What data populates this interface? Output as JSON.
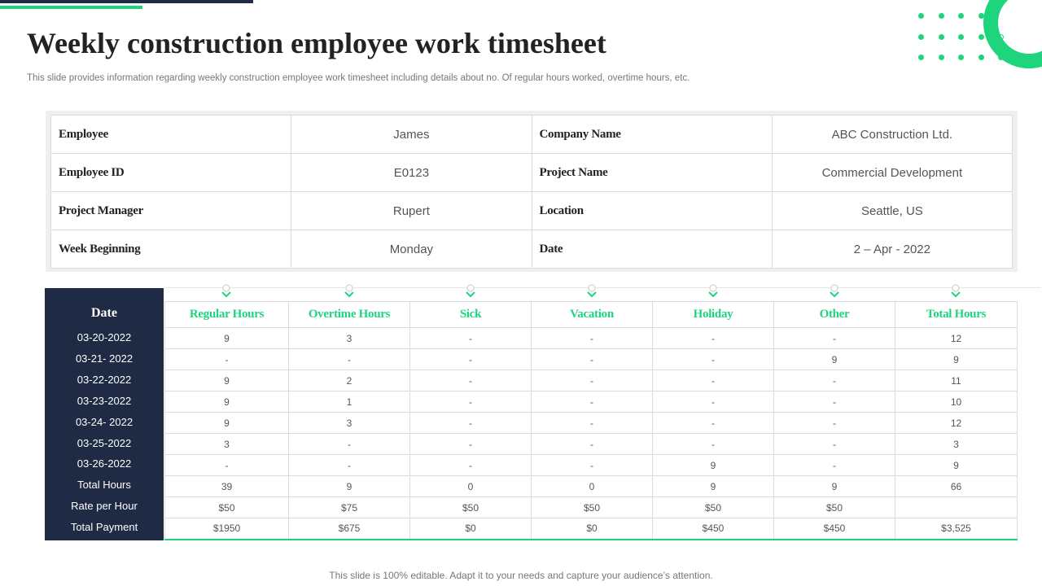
{
  "title": "Weekly construction employee work timesheet",
  "subtitle": "This slide provides information regarding weekly construction employee work timesheet including details about no. Of regular hours worked, overtime hours, etc.",
  "colors": {
    "accent": "#1ed47c",
    "navy": "#1f2a44"
  },
  "info": [
    {
      "l1": "Employee",
      "v1": "James",
      "l2": "Company Name",
      "v2": "ABC Construction Ltd."
    },
    {
      "l1": "Employee ID",
      "v1": "E0123",
      "l2": "Project Name",
      "v2": "Commercial Development"
    },
    {
      "l1": "Project Manager",
      "v1": "Rupert",
      "l2": "Location",
      "v2": "Seattle, US"
    },
    {
      "l1": "Week Beginning",
      "v1": "Monday",
      "l2": "Date",
      "v2": "2 – Apr - 2022"
    }
  ],
  "timesheet": {
    "date_header": "Date",
    "columns": [
      "Regular Hours",
      "Overtime Hours",
      "Sick",
      "Vacation",
      "Holiday",
      "Other",
      "Total Hours"
    ],
    "rows": [
      {
        "label": "03-20-2022",
        "cells": [
          "9",
          "3",
          "-",
          "-",
          "-",
          "-",
          "12"
        ]
      },
      {
        "label": "03-21-  2022",
        "cells": [
          "-",
          "-",
          "-",
          "-",
          "-",
          "9",
          "9"
        ]
      },
      {
        "label": "03-22-2022",
        "cells": [
          "9",
          "2",
          "-",
          "-",
          "-",
          "-",
          "11"
        ]
      },
      {
        "label": "03-23-2022",
        "cells": [
          "9",
          "1",
          "-",
          "-",
          "-",
          "-",
          "10"
        ]
      },
      {
        "label": "03-24-  2022",
        "cells": [
          "9",
          "3",
          "-",
          "-",
          "-",
          "-",
          "12"
        ]
      },
      {
        "label": "03-25-2022",
        "cells": [
          "3",
          "-",
          "-",
          "-",
          "-",
          "-",
          "3"
        ]
      },
      {
        "label": "03-26-2022",
        "cells": [
          "-",
          "-",
          "-",
          "-",
          "9",
          "-",
          "9"
        ]
      },
      {
        "label": "Total Hours",
        "cells": [
          "39",
          "9",
          "0",
          "0",
          "9",
          "9",
          "66"
        ]
      },
      {
        "label": "Rate per Hour",
        "cells": [
          "$50",
          "$75",
          "$50",
          "$50",
          "$50",
          "$50",
          ""
        ]
      },
      {
        "label": "Total Payment",
        "cells": [
          "$1950",
          "$675",
          "$0",
          "$0",
          "$450",
          "$450",
          "$3,525"
        ]
      }
    ]
  },
  "footer": "This slide is 100% editable. Adapt it to your needs and capture your audience’s attention."
}
